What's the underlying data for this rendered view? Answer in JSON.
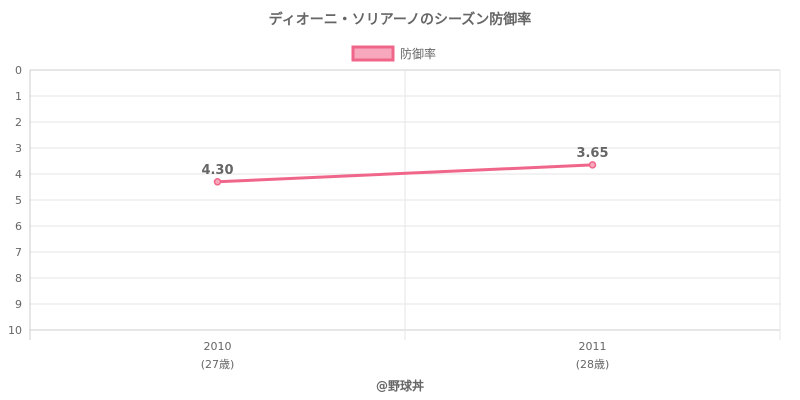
{
  "chart_data": {
    "type": "line",
    "title": "ディオーニ・ソリアーノのシーズン防御率",
    "categories": [
      "2010",
      "2011"
    ],
    "category_sublabels": [
      "(27歳)",
      "(28歳)"
    ],
    "series": [
      {
        "name": "防御率",
        "values": [
          4.3,
          3.65
        ],
        "value_labels": [
          "4.30",
          "3.65"
        ],
        "color": "#f0668a",
        "fill_color": "#f7a8bd"
      }
    ],
    "ylim": [
      0,
      10
    ],
    "y_reversed": true,
    "y_ticks": [
      0,
      1,
      2,
      3,
      4,
      5,
      6,
      7,
      8,
      9,
      10
    ],
    "grid": true,
    "legend": "top-center"
  },
  "footer": "@野球丼"
}
